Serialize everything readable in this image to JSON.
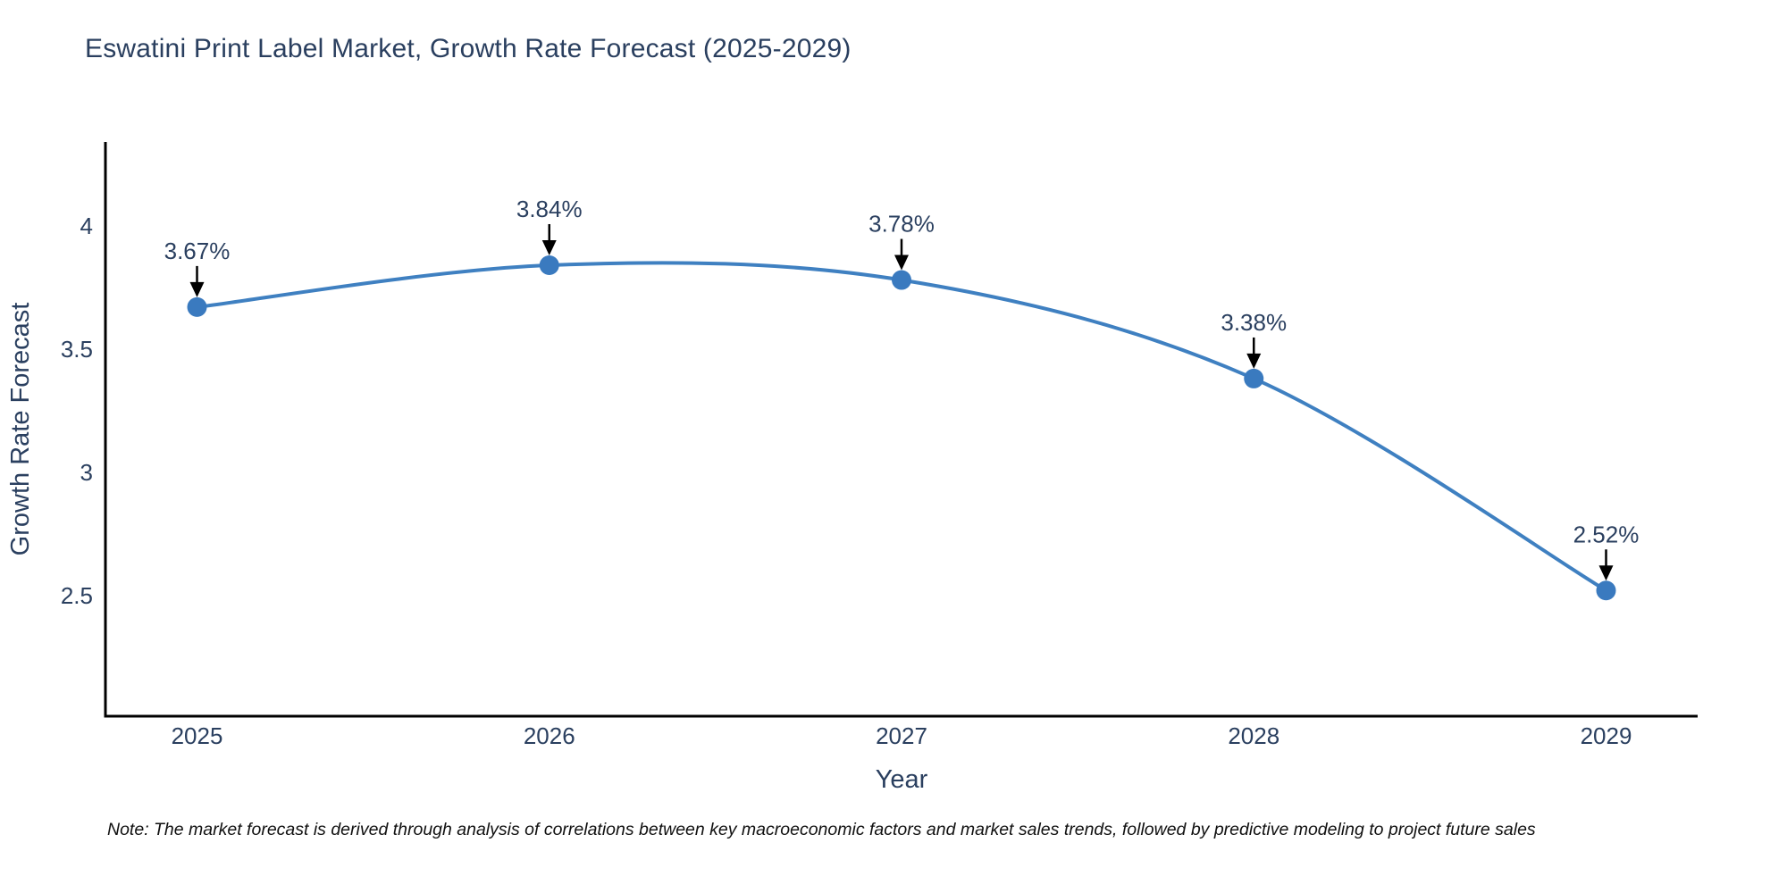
{
  "chart_data": {
    "type": "line",
    "title": "Eswatini Print Label Market, Growth Rate Forecast (2025-2029)",
    "xlabel": "Year",
    "ylabel": "Growth Rate Forecast",
    "x": [
      2025,
      2026,
      2027,
      2028,
      2029
    ],
    "y": [
      3.67,
      3.84,
      3.78,
      3.38,
      2.52
    ],
    "point_labels": [
      "3.67%",
      "3.84%",
      "3.78%",
      "3.38%",
      "2.52%"
    ],
    "xtick_labels": [
      "2025",
      "2026",
      "2027",
      "2028",
      "2029"
    ],
    "yticks": [
      2.5,
      3,
      3.5,
      4
    ],
    "ytick_labels": [
      "2.5",
      "3",
      "3.5",
      "4"
    ],
    "xlim": [
      2024.74,
      2029.26
    ],
    "ylim": [
      2.01,
      4.34
    ],
    "grid": false,
    "legend": "none",
    "colors": {
      "line": "#3f80c1",
      "marker": "#3a7abf",
      "axis": "#000000",
      "text": "#2a3f5f",
      "arrow": "#000000",
      "background": "#ffffff"
    },
    "note": "Note: The market forecast is derived through analysis of correlations between key macroeconomic factors and market sales trends, followed by predictive modeling to project future sales"
  }
}
